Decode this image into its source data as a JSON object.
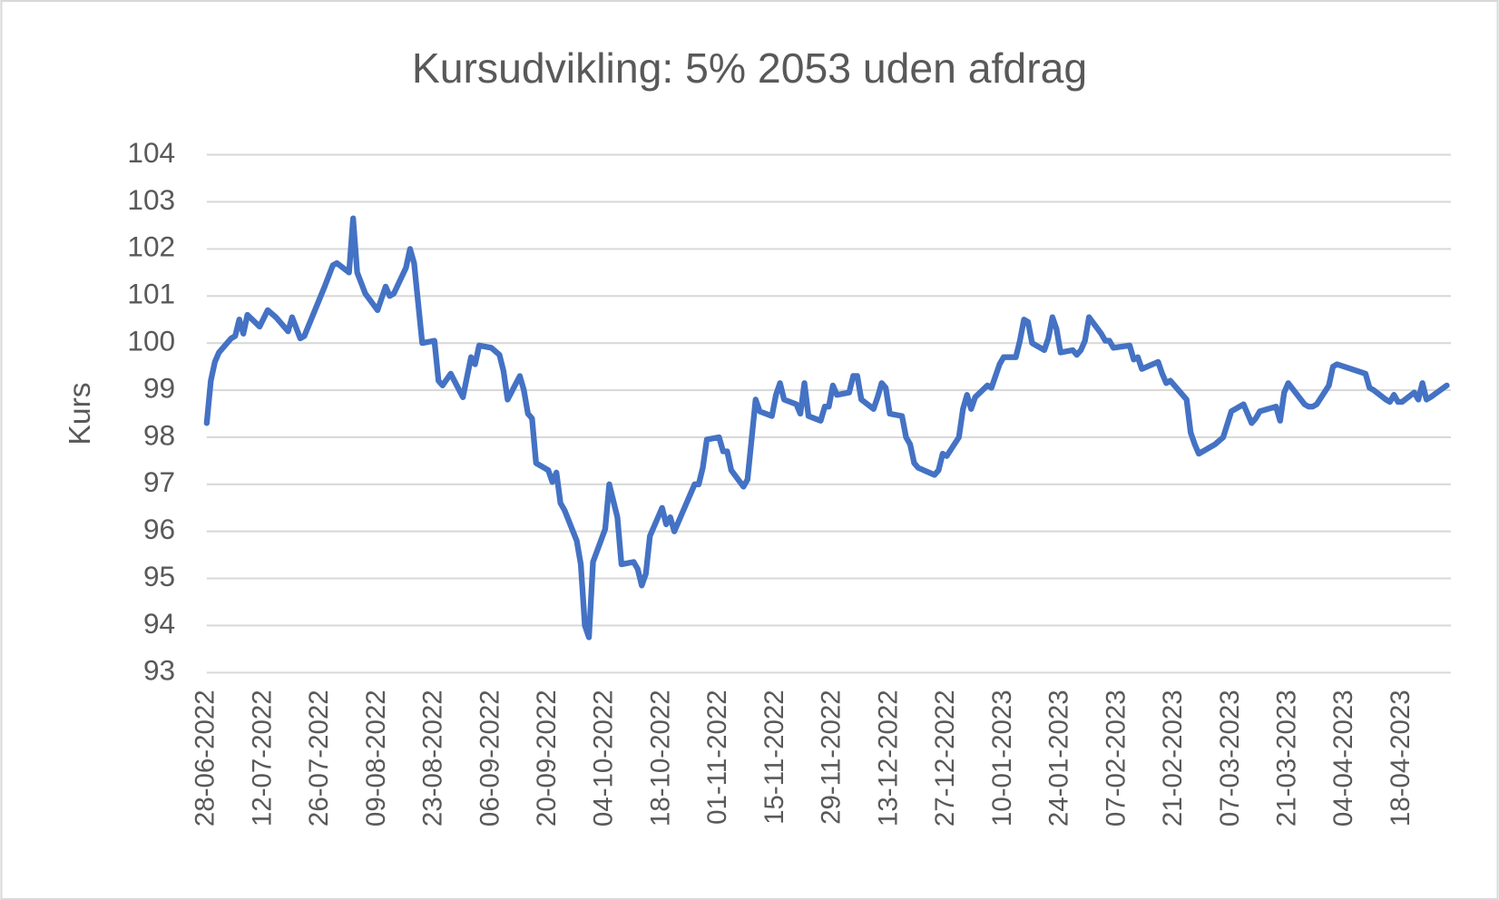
{
  "chart_data": {
    "type": "line",
    "title": "Kursudvikling: 5% 2053 uden afdrag",
    "y_label": "Kurs",
    "color": "#4472c4",
    "grid": true,
    "ylim": [
      93,
      104
    ],
    "yticks": [
      93,
      94,
      95,
      96,
      97,
      98,
      99,
      100,
      101,
      102,
      103,
      104
    ],
    "xlim": [
      "28-06-2022",
      "30-04-2023"
    ],
    "xticks": [
      "28-06-2022",
      "12-07-2022",
      "26-07-2022",
      "09-08-2022",
      "23-08-2022",
      "06-09-2022",
      "20-09-2022",
      "04-10-2022",
      "18-10-2022",
      "01-11-2022",
      "15-11-2022",
      "29-11-2022",
      "13-12-2022",
      "27-12-2022",
      "10-01-2023",
      "24-01-2023",
      "07-02-2023",
      "21-02-2023",
      "07-03-2023",
      "21-03-2023",
      "04-04-2023",
      "18-04-2023"
    ],
    "x": [
      "28-06-2022",
      "29-06-2022",
      "30-06-2022",
      "01-07-2022",
      "04-07-2022",
      "05-07-2022",
      "06-07-2022",
      "07-07-2022",
      "08-07-2022",
      "11-07-2022",
      "13-07-2022",
      "15-07-2022",
      "18-07-2022",
      "19-07-2022",
      "21-07-2022",
      "22-07-2022",
      "27-07-2022",
      "29-07-2022",
      "30-07-2022",
      "02-08-2022",
      "03-08-2022",
      "04-08-2022",
      "06-08-2022",
      "09-08-2022",
      "11-08-2022",
      "12-08-2022",
      "13-08-2022",
      "16-08-2022",
      "17-08-2022",
      "18-08-2022",
      "20-08-2022",
      "23-08-2022",
      "24-08-2022",
      "25-08-2022",
      "27-08-2022",
      "30-08-2022",
      "01-09-2022",
      "02-09-2022",
      "03-09-2022",
      "06-09-2022",
      "08-09-2022",
      "09-09-2022",
      "10-09-2022",
      "13-09-2022",
      "14-09-2022",
      "15-09-2022",
      "16-09-2022",
      "17-09-2022",
      "20-09-2022",
      "21-09-2022",
      "22-09-2022",
      "23-09-2022",
      "24-09-2022",
      "27-09-2022",
      "28-09-2022",
      "29-09-2022",
      "30-09-2022",
      "01-10-2022",
      "04-10-2022",
      "05-10-2022",
      "07-10-2022",
      "08-10-2022",
      "11-10-2022",
      "12-10-2022",
      "13-10-2022",
      "14-10-2022",
      "15-10-2022",
      "18-10-2022",
      "19-10-2022",
      "20-10-2022",
      "21-10-2022",
      "22-10-2022",
      "25-10-2022",
      "26-10-2022",
      "27-10-2022",
      "28-10-2022",
      "29-10-2022",
      "01-11-2022",
      "02-11-2022",
      "03-11-2022",
      "04-11-2022",
      "07-11-2022",
      "08-11-2022",
      "10-11-2022",
      "11-11-2022",
      "14-11-2022",
      "15-11-2022",
      "16-11-2022",
      "17-11-2022",
      "20-11-2022",
      "21-11-2022",
      "22-11-2022",
      "23-11-2022",
      "26-11-2022",
      "27-11-2022",
      "28-11-2022",
      "29-11-2022",
      "30-11-2022",
      "03-12-2022",
      "04-12-2022",
      "05-12-2022",
      "06-12-2022",
      "09-12-2022",
      "10-12-2022",
      "11-12-2022",
      "12-12-2022",
      "13-12-2022",
      "16-12-2022",
      "17-12-2022",
      "18-12-2022",
      "19-12-2022",
      "20-12-2022",
      "24-12-2022",
      "25-12-2022",
      "26-12-2022",
      "27-12-2022",
      "30-12-2022",
      "31-12-2022",
      "01-01-2023",
      "02-01-2023",
      "03-01-2023",
      "06-01-2023",
      "07-01-2023",
      "08-01-2023",
      "09-01-2023",
      "10-01-2023",
      "13-01-2023",
      "14-01-2023",
      "15-01-2023",
      "16-01-2023",
      "17-01-2023",
      "20-01-2023",
      "21-01-2023",
      "22-01-2023",
      "23-01-2023",
      "24-01-2023",
      "27-01-2023",
      "28-01-2023",
      "29-01-2023",
      "30-01-2023",
      "31-01-2023",
      "03-02-2023",
      "04-02-2023",
      "05-02-2023",
      "06-02-2023",
      "10-02-2023",
      "11-02-2023",
      "12-02-2023",
      "13-02-2023",
      "17-02-2023",
      "18-02-2023",
      "19-02-2023",
      "20-02-2023",
      "21-02-2023",
      "24-02-2023",
      "25-02-2023",
      "26-02-2023",
      "27-02-2023",
      "03-03-2023",
      "05-03-2023",
      "07-03-2023",
      "10-03-2023",
      "11-03-2023",
      "12-03-2023",
      "13-03-2023",
      "14-03-2023",
      "18-03-2023",
      "19-03-2023",
      "20-03-2023",
      "21-03-2023",
      "25-03-2023",
      "26-03-2023",
      "27-03-2023",
      "28-03-2023",
      "31-03-2023",
      "01-04-2023",
      "02-04-2023",
      "09-04-2023",
      "10-04-2023",
      "11-04-2023",
      "14-04-2023",
      "15-04-2023",
      "16-04-2023",
      "17-04-2023",
      "18-04-2023",
      "21-04-2023",
      "22-04-2023",
      "23-04-2023",
      "24-04-2023",
      "25-04-2023",
      "29-04-2023"
    ],
    "values": [
      98.3,
      99.2,
      99.6,
      99.8,
      100.1,
      100.15,
      100.5,
      100.2,
      100.6,
      100.35,
      100.7,
      100.55,
      100.25,
      100.55,
      100.1,
      100.15,
      101.2,
      101.65,
      101.7,
      101.5,
      102.65,
      101.5,
      101.05,
      100.7,
      101.2,
      101.0,
      101.05,
      101.6,
      102.0,
      101.7,
      100.0,
      100.05,
      99.2,
      99.1,
      99.35,
      98.85,
      99.7,
      99.55,
      99.95,
      99.9,
      99.75,
      99.4,
      98.8,
      99.3,
      99.0,
      98.5,
      98.4,
      97.45,
      97.3,
      97.05,
      97.25,
      96.6,
      96.45,
      95.8,
      95.3,
      94.0,
      93.75,
      95.35,
      96.05,
      97.0,
      96.3,
      95.3,
      95.35,
      95.2,
      94.85,
      95.1,
      95.9,
      96.5,
      96.15,
      96.3,
      96.0,
      96.2,
      96.8,
      97.0,
      97.0,
      97.35,
      97.95,
      98.0,
      97.7,
      97.7,
      97.3,
      96.95,
      97.1,
      98.8,
      98.55,
      98.45,
      98.9,
      99.15,
      98.8,
      98.7,
      98.5,
      99.15,
      98.45,
      98.35,
      98.65,
      98.65,
      99.1,
      98.9,
      98.95,
      99.3,
      99.3,
      98.8,
      98.6,
      98.85,
      99.15,
      99.05,
      98.5,
      98.45,
      98.0,
      97.85,
      97.45,
      97.35,
      97.2,
      97.3,
      97.65,
      97.6,
      98.0,
      98.6,
      98.9,
      98.6,
      98.85,
      99.1,
      99.05,
      99.3,
      99.55,
      99.7,
      99.7,
      100.05,
      100.5,
      100.45,
      100.0,
      99.85,
      100.1,
      100.55,
      100.3,
      99.8,
      99.85,
      99.75,
      99.85,
      100.05,
      100.55,
      100.2,
      100.05,
      100.05,
      99.9,
      99.95,
      99.65,
      99.7,
      99.45,
      99.6,
      99.35,
      99.15,
      99.2,
      99.1,
      98.8,
      98.1,
      97.85,
      97.65,
      97.85,
      98.0,
      98.55,
      98.7,
      98.5,
      98.3,
      98.4,
      98.55,
      98.65,
      98.35,
      98.95,
      99.15,
      98.7,
      98.65,
      98.65,
      98.7,
      99.1,
      99.5,
      99.55,
      99.35,
      99.05,
      99.0,
      98.8,
      98.75,
      98.9,
      98.75,
      98.75,
      98.95,
      98.8,
      99.15,
      98.8,
      98.85,
      99.1
    ]
  }
}
